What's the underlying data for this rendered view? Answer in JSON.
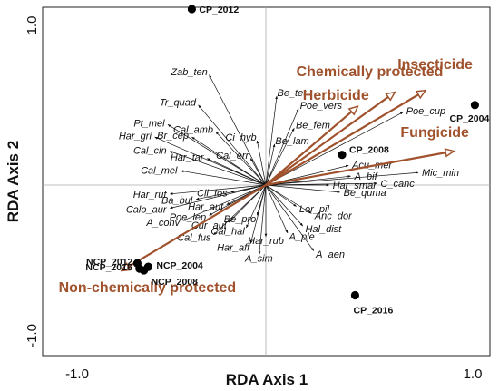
{
  "chart_data": {
    "type": "scatter",
    "subtype": "rda-biplot",
    "title": "",
    "xlabel": "RDA Axis 1",
    "ylabel": "RDA Axis 2",
    "xlim": [
      -1.0,
      1.0
    ],
    "ylim": [
      -1.0,
      1.0
    ],
    "x_ticks": [
      "-1.0",
      "1.0"
    ],
    "y_ticks": [
      "1.0",
      "-1.0"
    ],
    "grid": false,
    "zero_lines": true,
    "colors": {
      "environment": "#a0522d",
      "species": "#111111",
      "sites": "#000000"
    },
    "environmental_variables": [
      {
        "name": "Insecticide",
        "x": 0.73,
        "y": 0.53
      },
      {
        "name": "Chemically protected",
        "x": 0.59,
        "y": 0.52
      },
      {
        "name": "Herbicide",
        "x": 0.42,
        "y": 0.44
      },
      {
        "name": "Fungicide",
        "x": 0.86,
        "y": 0.19
      },
      {
        "name": "Non-chemically protected",
        "x": -0.66,
        "y": -0.48
      }
    ],
    "species": [
      {
        "name": "Zab_ten",
        "x": -0.26,
        "y": 0.62
      },
      {
        "name": "Tr_quad",
        "x": -0.31,
        "y": 0.45
      },
      {
        "name": "Pt_mel",
        "x": -0.45,
        "y": 0.34
      },
      {
        "name": "Har_gri",
        "x": -0.51,
        "y": 0.27
      },
      {
        "name": "Br_cep",
        "x": -0.34,
        "y": 0.27
      },
      {
        "name": "Cal_amb",
        "x": -0.23,
        "y": 0.3
      },
      {
        "name": "Ci_hyb",
        "x": -0.04,
        "y": 0.25
      },
      {
        "name": "Cal_cin",
        "x": -0.44,
        "y": 0.19
      },
      {
        "name": "Har_tar",
        "x": -0.27,
        "y": 0.15
      },
      {
        "name": "Cal_err",
        "x": -0.07,
        "y": 0.15
      },
      {
        "name": "Cal_mel",
        "x": -0.39,
        "y": 0.08
      },
      {
        "name": "Har_ruf",
        "x": -0.44,
        "y": -0.05
      },
      {
        "name": "Cli_fos",
        "x": -0.16,
        "y": -0.04
      },
      {
        "name": "Ba_bul",
        "x": -0.32,
        "y": -0.08
      },
      {
        "name": "Har_aut",
        "x": -0.18,
        "y": -0.11
      },
      {
        "name": "Calo_aur",
        "x": -0.44,
        "y": -0.13
      },
      {
        "name": "Poe_lep",
        "x": -0.26,
        "y": -0.17
      },
      {
        "name": "A_conv",
        "x": -0.38,
        "y": -0.2
      },
      {
        "name": "Cur_aul",
        "x": -0.17,
        "y": -0.21
      },
      {
        "name": "Be_pro",
        "x": -0.04,
        "y": -0.17
      },
      {
        "name": "Cal_hal",
        "x": -0.09,
        "y": -0.24
      },
      {
        "name": "Cal_fus",
        "x": -0.24,
        "y": -0.28
      },
      {
        "name": "Har_rub",
        "x": 0.0,
        "y": -0.29
      },
      {
        "name": "Har_aff",
        "x": -0.07,
        "y": -0.33
      },
      {
        "name": "A_sim",
        "x": -0.03,
        "y": -0.39
      },
      {
        "name": "Lor_pil",
        "x": 0.14,
        "y": -0.12
      },
      {
        "name": "Anc_dor",
        "x": 0.21,
        "y": -0.16
      },
      {
        "name": "Hal_dist",
        "x": 0.17,
        "y": -0.23
      },
      {
        "name": "A_ple",
        "x": 0.1,
        "y": -0.27
      },
      {
        "name": "A_aen",
        "x": 0.22,
        "y": -0.37
      },
      {
        "name": "A_bif",
        "x": 0.39,
        "y": 0.05
      },
      {
        "name": "Har_smar",
        "x": 0.29,
        "y": 0.0
      },
      {
        "name": "Be_quma",
        "x": 0.34,
        "y": -0.04
      },
      {
        "name": "C_canc",
        "x": 0.51,
        "y": 0.01
      },
      {
        "name": "Mic_min",
        "x": 0.7,
        "y": 0.07
      },
      {
        "name": "Acu_mer",
        "x": 0.38,
        "y": 0.11
      },
      {
        "name": "Be_lam",
        "x": 0.04,
        "y": 0.23
      },
      {
        "name": "Be_fem",
        "x": 0.13,
        "y": 0.32
      },
      {
        "name": "Poe_vers",
        "x": 0.15,
        "y": 0.43
      },
      {
        "name": "Be_tet",
        "x": 0.05,
        "y": 0.5
      },
      {
        "name": "Poe_cup",
        "x": 0.63,
        "y": 0.41
      }
    ],
    "sites": [
      {
        "name": "CP_2012",
        "x": -0.34,
        "y": 0.99
      },
      {
        "name": "CP_2004",
        "x": 0.96,
        "y": 0.45
      },
      {
        "name": "CP_2008",
        "x": 0.35,
        "y": 0.17
      },
      {
        "name": "CP_2016",
        "x": 0.41,
        "y": -0.62
      },
      {
        "name": "NCP_2012",
        "x": -0.59,
        "y": -0.44
      },
      {
        "name": "NCP_2016",
        "x": -0.58,
        "y": -0.47
      },
      {
        "name": "NCP_2004",
        "x": -0.54,
        "y": -0.46
      },
      {
        "name": "NCP_2008",
        "x": -0.56,
        "y": -0.48
      }
    ]
  }
}
